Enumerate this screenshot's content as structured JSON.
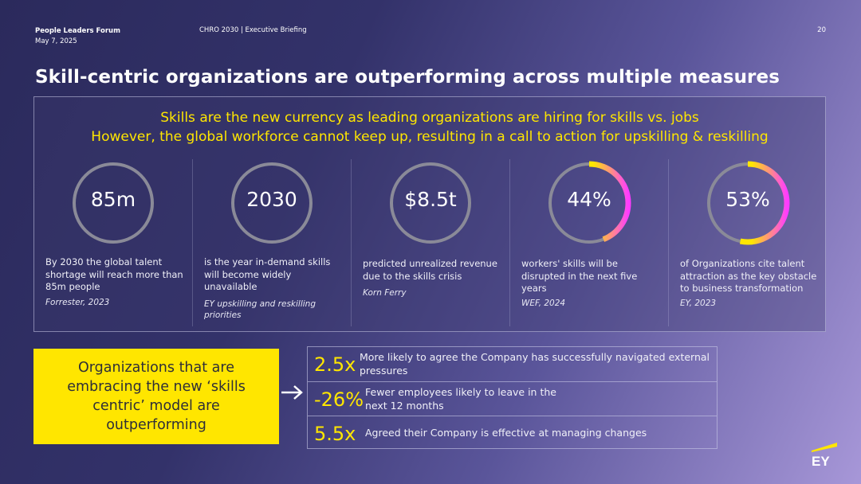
{
  "header": {
    "event": "People Leaders Forum",
    "date": "May 7, 2025",
    "briefing": "CHRO 2030 | Executive Briefing",
    "page_number": "20"
  },
  "title": "Skill-centric organizations are outperforming across multiple measures",
  "subtitle_line1": "Skills are the new currency as leading organizations are hiring for skills vs. jobs",
  "subtitle_line2": "However, the global workforce cannot keep up, resulting in a call to action for upskilling & reskilling",
  "stats": [
    {
      "value": "85m",
      "description": "By 2030 the global talent shortage will reach more than 85m people",
      "source": "Forrester, 2023"
    },
    {
      "value": "2030",
      "description": "is the year in-demand skills will become widely unavailable",
      "source": "EY upskilling and reskilling priorities"
    },
    {
      "value": "$8.5t",
      "description": "predicted unrealized revenue due to the skills crisis",
      "source": "Korn Ferry"
    },
    {
      "value": "44%",
      "percent": 44,
      "description": "workers' skills will be disrupted in the next five years",
      "source": "WEF, 2024"
    },
    {
      "value": "53%",
      "percent": 53,
      "description": "of Organizations cite talent attraction as the key obstacle to business transformation",
      "source": "EY, 2023"
    }
  ],
  "callout": "Organizations that are embracing the new ‘skills centric’ model are outperforming",
  "metrics": [
    {
      "value": "2.5x",
      "text": "More likely to agree the Company has successfully navigated external pressures"
    },
    {
      "value": "-26%",
      "text": "Fewer employees likely to leave in the next 12 months"
    },
    {
      "value": "5.5x",
      "text": "Agreed their Company is effective at managing changes"
    }
  ],
  "colors": {
    "accent_yellow": "#ffe600",
    "accent_pink": "#ff3cff",
    "ring_gray": "#8a8a98"
  }
}
